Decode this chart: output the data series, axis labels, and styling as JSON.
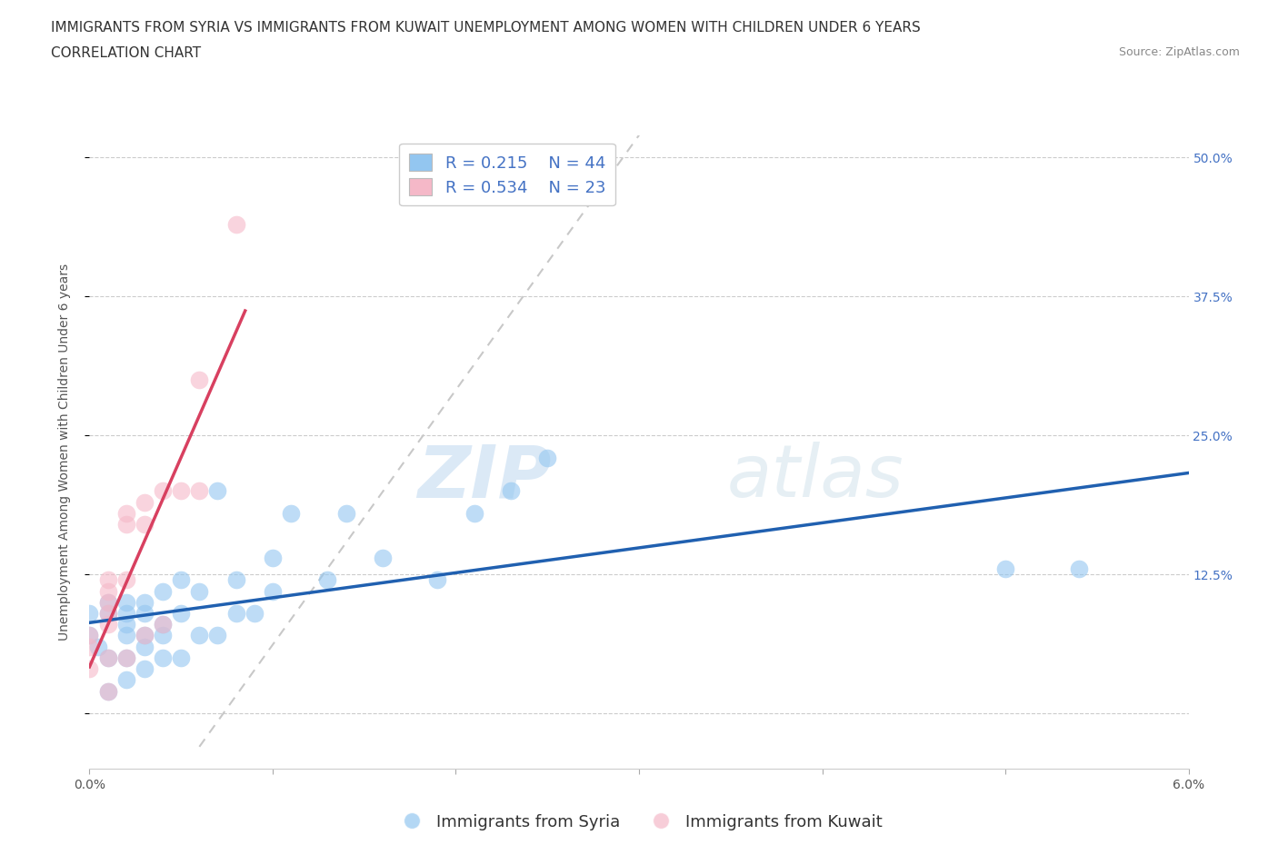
{
  "title_line1": "IMMIGRANTS FROM SYRIA VS IMMIGRANTS FROM KUWAIT UNEMPLOYMENT AMONG WOMEN WITH CHILDREN UNDER 6 YEARS",
  "title_line2": "CORRELATION CHART",
  "source_text": "Source: ZipAtlas.com",
  "watermark_zip": "ZIP",
  "watermark_atlas": "atlas",
  "xlabel": "",
  "ylabel": "Unemployment Among Women with Children Under 6 years",
  "xlim": [
    0.0,
    0.06
  ],
  "ylim": [
    -0.05,
    0.52
  ],
  "xticks": [
    0.0,
    0.01,
    0.02,
    0.03,
    0.04,
    0.05,
    0.06
  ],
  "xtick_labels": [
    "0.0%",
    "",
    "",
    "",
    "",
    "",
    "6.0%"
  ],
  "ytick_positions": [
    0.0,
    0.125,
    0.25,
    0.375,
    0.5
  ],
  "ytick_labels": [
    "",
    "12.5%",
    "25.0%",
    "37.5%",
    "50.0%"
  ],
  "grid_color": "#cccccc",
  "background_color": "#ffffff",
  "syria_color": "#93c6f0",
  "kuwait_color": "#f5b8c8",
  "syria_line_color": "#2060b0",
  "kuwait_line_color": "#d84060",
  "diagonal_color": "#c8c8c8",
  "legend_R_syria": "0.215",
  "legend_N_syria": "44",
  "legend_R_kuwait": "0.534",
  "legend_N_kuwait": "23",
  "syria_x": [
    0.0,
    0.0,
    0.0005,
    0.001,
    0.001,
    0.001,
    0.001,
    0.002,
    0.002,
    0.002,
    0.002,
    0.002,
    0.002,
    0.003,
    0.003,
    0.003,
    0.003,
    0.003,
    0.004,
    0.004,
    0.004,
    0.004,
    0.005,
    0.005,
    0.005,
    0.006,
    0.006,
    0.007,
    0.007,
    0.008,
    0.008,
    0.009,
    0.01,
    0.01,
    0.011,
    0.013,
    0.014,
    0.016,
    0.019,
    0.021,
    0.023,
    0.025,
    0.05,
    0.054
  ],
  "syria_y": [
    0.07,
    0.09,
    0.06,
    0.02,
    0.05,
    0.09,
    0.1,
    0.03,
    0.05,
    0.07,
    0.08,
    0.09,
    0.1,
    0.04,
    0.06,
    0.07,
    0.09,
    0.1,
    0.05,
    0.07,
    0.08,
    0.11,
    0.05,
    0.09,
    0.12,
    0.07,
    0.11,
    0.07,
    0.2,
    0.09,
    0.12,
    0.09,
    0.11,
    0.14,
    0.18,
    0.12,
    0.18,
    0.14,
    0.12,
    0.18,
    0.2,
    0.23,
    0.13,
    0.13
  ],
  "kuwait_x": [
    0.0,
    0.0,
    0.0,
    0.001,
    0.001,
    0.001,
    0.001,
    0.001,
    0.001,
    0.001,
    0.002,
    0.002,
    0.002,
    0.002,
    0.003,
    0.003,
    0.003,
    0.004,
    0.004,
    0.005,
    0.006,
    0.006,
    0.008
  ],
  "kuwait_y": [
    0.04,
    0.06,
    0.07,
    0.02,
    0.05,
    0.08,
    0.09,
    0.1,
    0.11,
    0.12,
    0.05,
    0.12,
    0.17,
    0.18,
    0.07,
    0.17,
    0.19,
    0.08,
    0.2,
    0.2,
    0.2,
    0.3,
    0.44
  ],
  "title_fontsize": 11,
  "subtitle_fontsize": 11,
  "axis_label_fontsize": 10,
  "tick_fontsize": 10,
  "legend_fontsize": 13,
  "source_fontsize": 9
}
